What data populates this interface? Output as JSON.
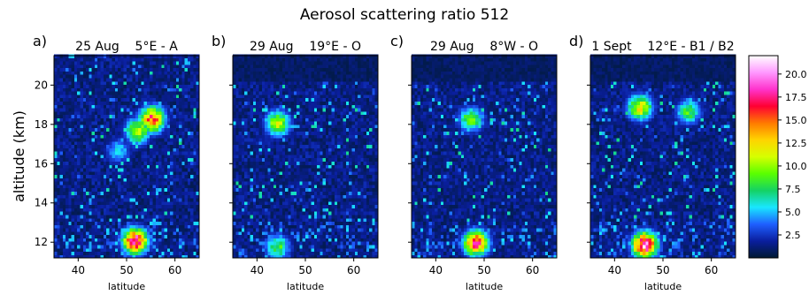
{
  "figure": {
    "title": "Aerosol scattering ratio 512",
    "ylabel": "altitude (km)"
  },
  "colorbar": {
    "ticks": [
      "2.5",
      "5.0",
      "7.5",
      "10.0",
      "12.5",
      "15.0",
      "17.5",
      "20.0"
    ],
    "range": [
      0,
      22
    ],
    "colormap": [
      "#001a33",
      "#0a1e9e",
      "#1f5fff",
      "#19e6ff",
      "#14d264",
      "#5aff00",
      "#d6ff00",
      "#ffd400",
      "#ff7a00",
      "#ff0033",
      "#ff33cc",
      "#ff99ff",
      "#ffffff"
    ]
  },
  "chart_data": [
    {
      "type": "heatmap",
      "panel_label": "a)",
      "title": "25 Aug    5°E - A",
      "xlabel": "latitude",
      "ylabel": "altitude (km)",
      "xlim": [
        35,
        65
      ],
      "ylim": [
        11.2,
        21.5
      ],
      "xticks": [
        "40",
        "50",
        "60"
      ],
      "yticks": [
        "12",
        "14",
        "16",
        "18",
        "20"
      ],
      "features": [
        {
          "lat": 55,
          "alt": 18.2,
          "value": 17
        },
        {
          "lat": 52,
          "alt": 17.6,
          "value": 12
        },
        {
          "lat": 48,
          "alt": 16.6,
          "value": 6
        },
        {
          "lat": 51.5,
          "alt": 12.0,
          "value": 20
        }
      ]
    },
    {
      "type": "heatmap",
      "panel_label": "b)",
      "title": "29 Aug    19°E - O",
      "xlabel": "latitude",
      "ylabel": "",
      "xlim": [
        35,
        65
      ],
      "ylim": [
        11.2,
        21.5
      ],
      "xticks": [
        "40",
        "50",
        "60"
      ],
      "yticks": [],
      "features": [
        {
          "lat": 44,
          "alt": 18.0,
          "value": 12
        },
        {
          "lat": 44,
          "alt": 11.7,
          "value": 9
        }
      ]
    },
    {
      "type": "heatmap",
      "panel_label": "c)",
      "title": "29 Aug    8°W - O",
      "xlabel": "latitude",
      "ylabel": "",
      "xlim": [
        35,
        65
      ],
      "ylim": [
        11.2,
        21.5
      ],
      "xticks": [
        "40",
        "50",
        "60"
      ],
      "yticks": [],
      "features": [
        {
          "lat": 47,
          "alt": 18.2,
          "value": 10
        },
        {
          "lat": 48,
          "alt": 11.9,
          "value": 18
        }
      ]
    },
    {
      "type": "heatmap",
      "panel_label": "d)",
      "title": "1 Sept    12°E - B1 / B2",
      "xlabel": "latitude",
      "ylabel": "",
      "xlim": [
        35,
        65
      ],
      "ylim": [
        11.2,
        21.5
      ],
      "xticks": [
        "40",
        "50",
        "60"
      ],
      "yticks": [],
      "features": [
        {
          "lat": 45,
          "alt": 18.8,
          "value": 13
        },
        {
          "lat": 55,
          "alt": 18.6,
          "value": 9
        },
        {
          "lat": 46,
          "alt": 11.8,
          "value": 21
        }
      ]
    }
  ]
}
